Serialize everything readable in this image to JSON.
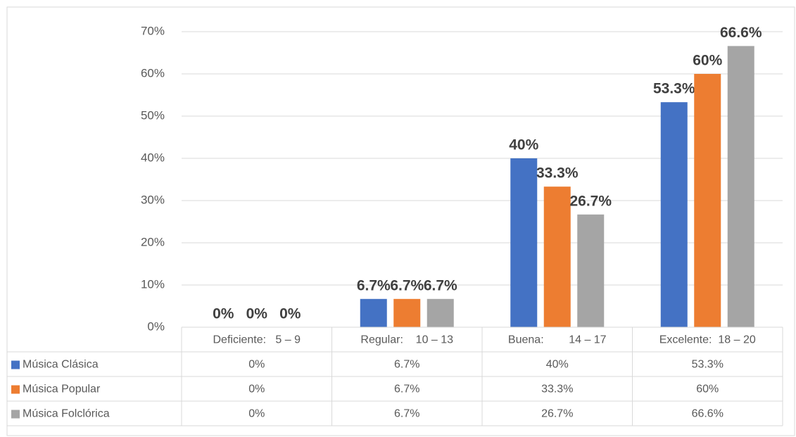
{
  "chart_data": {
    "type": "bar",
    "categories": [
      "Deficiente:   5 – 9",
      "Regular:    10 – 13",
      "Buena:        14 – 17",
      "Excelente:  18 – 20"
    ],
    "series": [
      {
        "name": "Música Clásica",
        "color": "#4472c4",
        "values": [
          0,
          6.7,
          40,
          53.3
        ],
        "value_labels": [
          "0%",
          "6.7%",
          "40%",
          "53.3%"
        ]
      },
      {
        "name": "Música Popular",
        "color": "#ed7d31",
        "values": [
          0,
          6.7,
          33.3,
          60
        ],
        "value_labels": [
          "0%",
          "6.7%",
          "33.3%",
          "60%"
        ]
      },
      {
        "name": "Música Folclórica",
        "color": "#a5a5a5",
        "values": [
          0,
          6.7,
          26.7,
          66.6
        ],
        "value_labels": [
          "0%",
          "6.7%",
          "26.7%",
          "66.6%"
        ]
      }
    ],
    "ylim": [
      0,
      70
    ],
    "yticks": [
      {
        "value": 0,
        "label": "0%"
      },
      {
        "value": 10,
        "label": "10%"
      },
      {
        "value": 20,
        "label": "20%"
      },
      {
        "value": 30,
        "label": "30%"
      },
      {
        "value": 40,
        "label": "40%"
      },
      {
        "value": 50,
        "label": "50%"
      },
      {
        "value": 60,
        "label": "60%"
      },
      {
        "value": 70,
        "label": "70%"
      }
    ],
    "grid": true,
    "data_table": true
  }
}
